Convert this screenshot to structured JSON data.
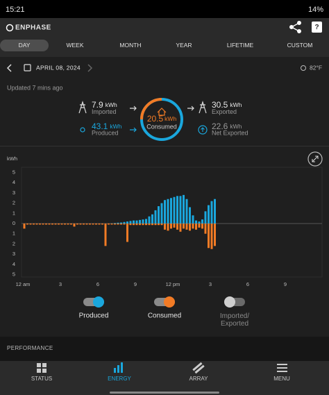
{
  "status_bar": {
    "time": "15:21",
    "battery": "14%"
  },
  "app_bar": {
    "brand": "ENPHASE"
  },
  "tabs": [
    "DAY",
    "WEEK",
    "MONTH",
    "YEAR",
    "LIFETIME",
    "CUSTOM"
  ],
  "date": "APRIL 08, 2024",
  "temperature": "82°F",
  "updated": "Updated 7 mins ago",
  "summary": {
    "imported": {
      "value": 7.9,
      "unit": "kWh",
      "label": "Imported"
    },
    "produced": {
      "value": 43.1,
      "unit": "kWh",
      "label": "Produced"
    },
    "consumed": {
      "value": 20.5,
      "unit": "kWh",
      "label": "Consumed"
    },
    "exported": {
      "value": 30.5,
      "unit": "kWh",
      "label": "Exported"
    },
    "net_exported": {
      "value": 22.6,
      "unit": "kWh",
      "label": "Net Exported"
    }
  },
  "chart_data": {
    "type": "bar",
    "y_label": "kWh",
    "x": [
      0,
      0.25,
      0.5,
      0.75,
      1,
      1.25,
      1.5,
      1.75,
      2,
      2.25,
      2.5,
      2.75,
      3,
      3.25,
      3.5,
      3.75,
      4,
      4.25,
      4.5,
      4.75,
      5,
      5.25,
      5.5,
      5.75,
      6,
      6.25,
      6.5,
      6.75,
      7,
      7.25,
      7.5,
      7.75,
      8,
      8.25,
      8.5,
      8.75,
      9,
      9.25,
      9.5,
      9.75,
      10,
      10.25,
      10.5,
      10.75,
      11,
      11.25,
      11.5,
      11.75,
      12,
      12.25,
      12.5,
      12.75,
      13,
      13.25,
      13.5,
      13.75,
      14,
      14.25,
      14.5,
      14.75,
      15,
      15.25
    ],
    "series": [
      {
        "name": "Produced",
        "color": "#1aa7dd",
        "values": [
          0,
          0,
          0,
          0,
          0,
          0,
          0,
          0,
          0,
          0,
          0,
          0,
          0,
          0,
          0,
          0,
          0,
          0,
          0,
          0,
          0,
          0,
          0,
          0,
          0,
          0,
          0,
          0,
          0.02,
          0.05,
          0.08,
          0.1,
          0.15,
          0.2,
          0.25,
          0.3,
          0.3,
          0.35,
          0.4,
          0.45,
          0.7,
          0.9,
          1.3,
          1.7,
          2.0,
          2.3,
          2.4,
          2.5,
          2.6,
          2.7,
          2.7,
          2.8,
          2.4,
          1.6,
          0.8,
          0.3,
          0.2,
          0.4,
          1.2,
          1.8,
          2.2,
          2.4
        ]
      },
      {
        "name": "Consumed",
        "color": "#f27b25",
        "values": [
          -0.5,
          -0.1,
          -0.1,
          -0.1,
          -0.1,
          -0.1,
          -0.1,
          -0.1,
          -0.1,
          -0.1,
          -0.1,
          -0.1,
          -0.1,
          -0.1,
          -0.1,
          -0.1,
          -0.3,
          -0.1,
          -0.1,
          -0.1,
          -0.1,
          -0.1,
          -0.1,
          -0.1,
          -0.1,
          -0.1,
          -2.2,
          -0.1,
          -0.1,
          -0.1,
          -0.1,
          -0.1,
          -0.1,
          -1.8,
          -0.15,
          -0.15,
          -0.15,
          -0.15,
          -0.15,
          -0.15,
          -0.15,
          -0.15,
          -0.15,
          -0.15,
          -0.15,
          -0.6,
          -0.7,
          -0.5,
          -0.4,
          -0.6,
          -0.8,
          -0.5,
          -0.6,
          -0.7,
          -0.5,
          -0.6,
          -0.4,
          -0.5,
          -1.0,
          -2.4,
          -2.5,
          -2.2
        ]
      }
    ],
    "inactive_legend": "Imported/ Exported",
    "xlim": [
      0,
      24
    ],
    "xticks": [
      {
        "value": 0,
        "label": "12 am"
      },
      3,
      6,
      9,
      {
        "value": 12,
        "label": "12 pm"
      },
      {
        "value": 15,
        "label": "3"
      },
      {
        "value": 18,
        "label": "6"
      },
      {
        "value": 21,
        "label": "9"
      }
    ],
    "ylim": [
      -5,
      5
    ],
    "yticks": [
      5,
      4,
      3,
      2,
      1,
      0,
      {
        "value": -1,
        "label": "1"
      },
      {
        "value": -2,
        "label": "2"
      },
      {
        "value": -3,
        "label": "3"
      },
      {
        "value": -4,
        "label": "4"
      },
      {
        "value": -5,
        "label": "5"
      }
    ],
    "grid": false
  },
  "section": "PERFORMANCE",
  "nav": [
    "STATUS",
    "ENERGY",
    "ARRAY",
    "MENU"
  ]
}
